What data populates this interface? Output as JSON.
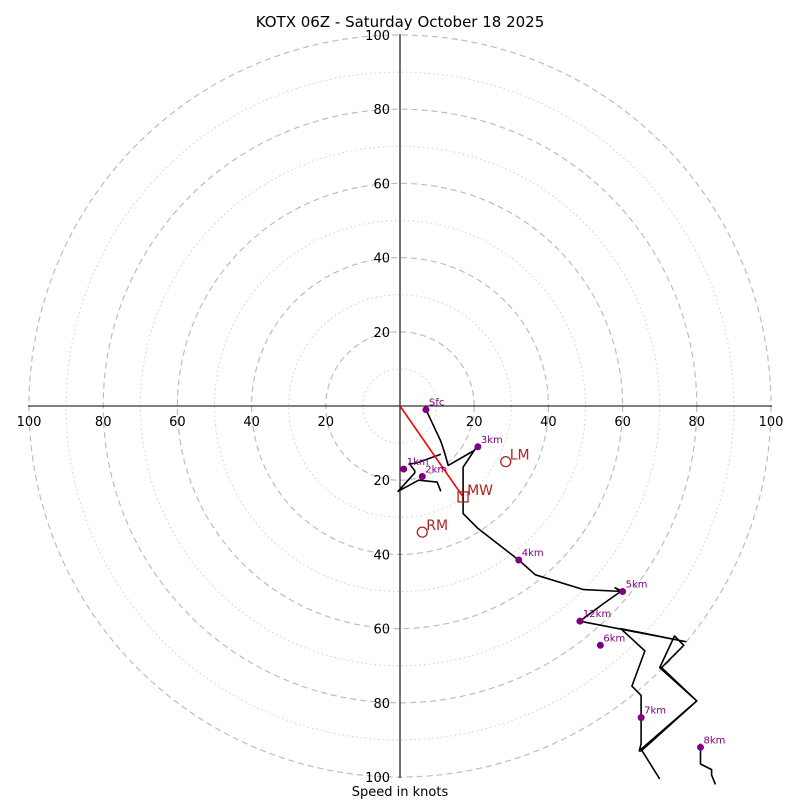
{
  "chart_data": {
    "type": "hodograph",
    "title": "KOTX 06Z - Saturday October 18 2025",
    "xlabel": "Speed in knots",
    "units": "knots",
    "range": [
      -100,
      100
    ],
    "major_rings": [
      20,
      40,
      60,
      80,
      100
    ],
    "minor_rings": [
      10,
      30,
      50,
      70,
      90
    ],
    "x_ticks": [
      {
        "value": -100,
        "label": "100"
      },
      {
        "value": -80,
        "label": "80"
      },
      {
        "value": -60,
        "label": "60"
      },
      {
        "value": -40,
        "label": "40"
      },
      {
        "value": -20,
        "label": "20"
      },
      {
        "value": 20,
        "label": "20"
      },
      {
        "value": 40,
        "label": "40"
      },
      {
        "value": 60,
        "label": "60"
      },
      {
        "value": 80,
        "label": "80"
      },
      {
        "value": 100,
        "label": "100"
      }
    ],
    "y_ticks": [
      {
        "value": 100,
        "label": "100"
      },
      {
        "value": 80,
        "label": "80"
      },
      {
        "value": 60,
        "label": "60"
      },
      {
        "value": 40,
        "label": "40"
      },
      {
        "value": 20,
        "label": "20"
      },
      {
        "value": -20,
        "label": "20"
      },
      {
        "value": -40,
        "label": "40"
      },
      {
        "value": -60,
        "label": "60"
      },
      {
        "value": -80,
        "label": "80"
      },
      {
        "value": -100,
        "label": "100"
      }
    ],
    "trace": [
      [
        7,
        -1
      ],
      [
        11,
        -9.5
      ],
      [
        12,
        -12.5
      ],
      [
        13,
        -16
      ],
      [
        20,
        -12
      ],
      [
        21,
        -10.5
      ],
      [
        17,
        -16.5
      ],
      [
        17,
        -29
      ],
      [
        21,
        -33
      ],
      [
        32,
        -41.5
      ],
      [
        36.5,
        -45.5
      ],
      [
        49.5,
        -49.5
      ],
      [
        60,
        -50
      ],
      [
        58,
        -49
      ],
      [
        59.5,
        -50
      ],
      [
        54.5,
        -53.5
      ],
      [
        48.5,
        -58
      ],
      [
        77,
        -63.5
      ],
      [
        59.5,
        -60
      ],
      [
        66,
        -66
      ],
      [
        62.5,
        -75.5
      ],
      [
        65,
        -78
      ],
      [
        65,
        -84
      ],
      [
        65,
        -91
      ],
      [
        64.5,
        -93
      ],
      [
        65,
        -93
      ],
      [
        80,
        -79.5
      ],
      [
        70,
        -70.5
      ],
      [
        74,
        -62
      ],
      [
        76.5,
        -64.5
      ],
      [
        70.5,
        -70.5
      ],
      [
        80,
        -79.5
      ],
      [
        65,
        -92.5
      ],
      [
        70,
        -100.5
      ]
    ],
    "trace_lower": [
      [
        11,
        -13
      ],
      [
        5.5,
        -15
      ],
      [
        4,
        -15.5
      ],
      [
        2.5,
        -15.5
      ],
      [
        4,
        -17.5
      ],
      [
        4,
        -18
      ],
      [
        -0.5,
        -23
      ],
      [
        5,
        -20
      ],
      [
        10,
        -20.5
      ],
      [
        11,
        -23
      ]
    ],
    "trace_upper_tail": [
      [
        81,
        -91
      ],
      [
        81,
        -96.5
      ],
      [
        84,
        -98
      ],
      [
        84,
        -99.5
      ],
      [
        85,
        -102
      ]
    ],
    "height_markers": [
      {
        "label": "Sfc",
        "u": 7,
        "v": -1
      },
      {
        "label": "1km",
        "u": 1,
        "v": -17
      },
      {
        "label": "2km",
        "u": 6,
        "v": -19
      },
      {
        "label": "3km",
        "u": 21,
        "v": -11
      },
      {
        "label": "4km",
        "u": 32,
        "v": -41.5
      },
      {
        "label": "5km",
        "u": 60,
        "v": -50
      },
      {
        "label": "6km",
        "u": 54,
        "v": -64.5
      },
      {
        "label": "7km",
        "u": 65,
        "v": -84
      },
      {
        "label": "8km",
        "u": 81,
        "v": -92
      },
      {
        "label": "12km",
        "u": 48.5,
        "v": -58
      }
    ],
    "storm_motions": [
      {
        "label": "LM",
        "u": 28.5,
        "v": -15,
        "marker": "circle"
      },
      {
        "label": "MW",
        "u": 17,
        "v": -24.5,
        "marker": "square"
      },
      {
        "label": "RM",
        "u": 6,
        "v": -34,
        "marker": "circle"
      }
    ],
    "mean_wind_line": {
      "from": [
        0,
        0
      ],
      "to": [
        17,
        -24.5
      ]
    },
    "colors": {
      "trace": "#000000",
      "markers": "#800080",
      "storm_motion": "#b22222",
      "mean_wind_line": "#ff0000",
      "rings": "#bdbdbd"
    }
  }
}
